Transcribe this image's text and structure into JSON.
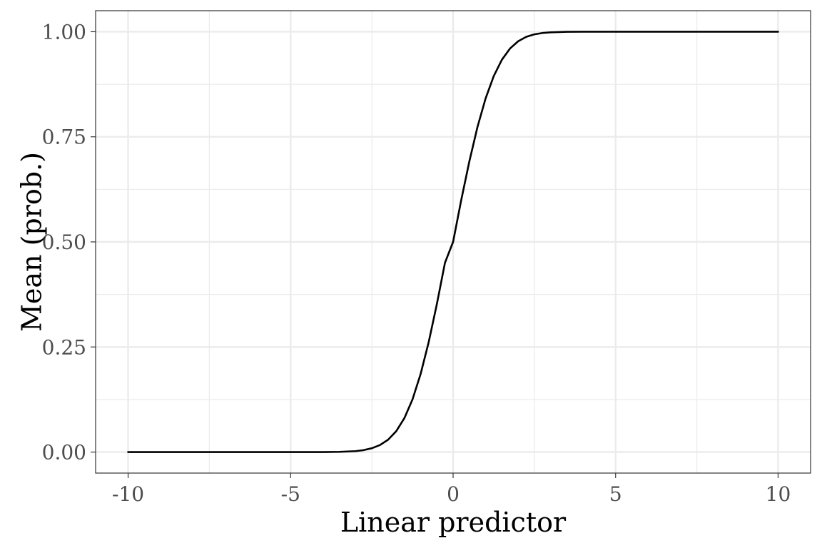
{
  "chart_data": {
    "type": "line",
    "title": "",
    "xlabel": "Linear predictor",
    "ylabel": "Mean (prob.)",
    "xlim": [
      -11,
      11
    ],
    "ylim": [
      -0.05,
      1.05
    ],
    "x_ticks": [
      {
        "value": -10,
        "label": "-10"
      },
      {
        "value": -5,
        "label": "-5"
      },
      {
        "value": 0,
        "label": "0"
      },
      {
        "value": 5,
        "label": "5"
      },
      {
        "value": 10,
        "label": "10"
      }
    ],
    "y_ticks": [
      {
        "value": 0.0,
        "label": "0.00"
      },
      {
        "value": 0.25,
        "label": "0.25"
      },
      {
        "value": 0.5,
        "label": "0.50"
      },
      {
        "value": 0.75,
        "label": "0.75"
      },
      {
        "value": 1.0,
        "label": "1.00"
      }
    ],
    "x_minor_ticks": [
      -7.5,
      -2.5,
      2.5,
      7.5
    ],
    "y_minor_ticks": [
      0.125,
      0.375,
      0.625,
      0.875
    ],
    "grid": true,
    "series": [
      {
        "color": "#000000",
        "x": [
          -10,
          -9,
          -8,
          -7,
          -6,
          -5,
          -4,
          -3.5,
          -3,
          -2.75,
          -2.5,
          -2.25,
          -2,
          -1.75,
          -1.5,
          -1.25,
          -1,
          -0.75,
          -0.5,
          -0.25,
          0,
          0.25,
          0.5,
          0.75,
          1,
          1.25,
          1.5,
          1.75,
          2,
          2.25,
          2.5,
          2.75,
          3,
          3.5,
          4,
          5,
          6,
          7,
          8,
          9,
          10
        ],
        "y": [
          0.0,
          0.0,
          0.0,
          0.0,
          0.0,
          0.0,
          0.0,
          0.0005,
          0.0022,
          0.0047,
          0.0091,
          0.0167,
          0.0294,
          0.0496,
          0.0805,
          0.1251,
          0.1855,
          0.2619,
          0.3519,
          0.4504,
          0.5,
          0.5996,
          0.6915,
          0.7734,
          0.8413,
          0.8944,
          0.9332,
          0.9599,
          0.9772,
          0.9878,
          0.9938,
          0.997,
          0.9986,
          0.9998,
          1.0,
          1.0,
          1.0,
          1.0,
          1.0,
          1.0,
          1.0
        ]
      }
    ]
  }
}
